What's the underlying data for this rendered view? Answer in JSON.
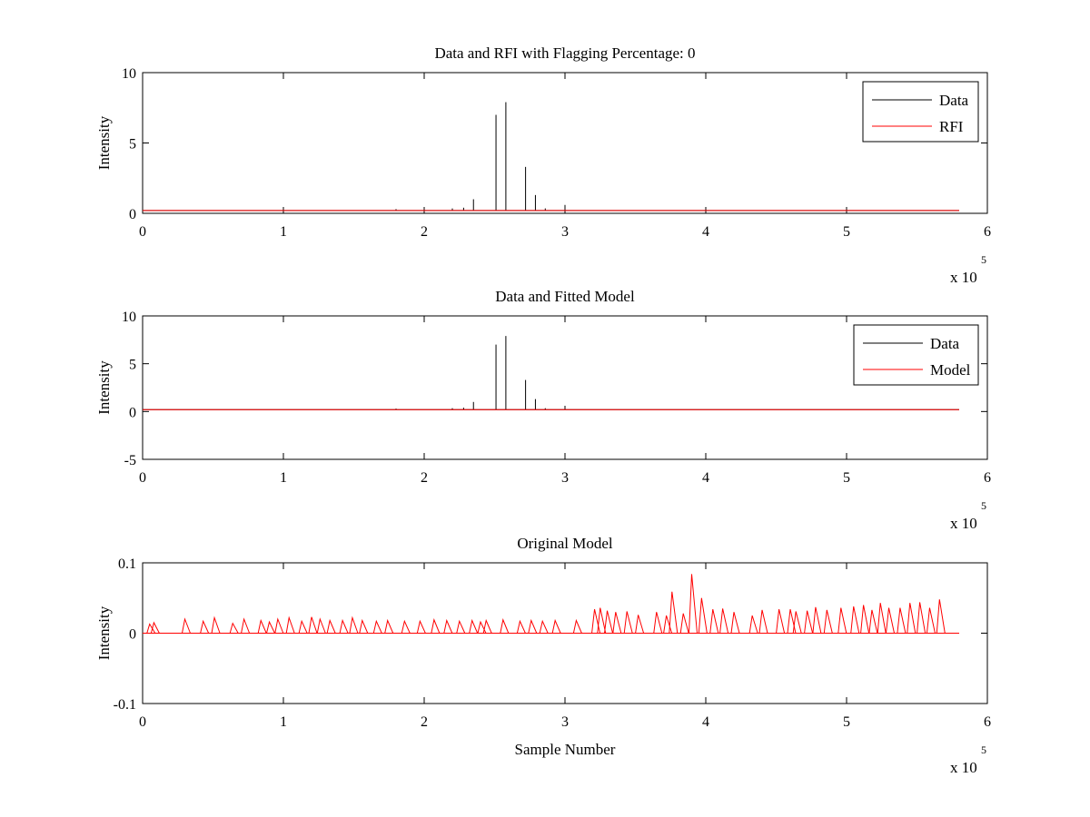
{
  "chart_data": [
    {
      "type": "line",
      "title": "Data and RFI with Flagging Percentage: 0",
      "xlabel": "",
      "ylabel": "Intensity",
      "xlim": [
        0,
        600000
      ],
      "ylim": [
        0,
        10
      ],
      "xticks": [
        0,
        1,
        2,
        3,
        4,
        5,
        6
      ],
      "yticks": [
        0,
        5,
        10
      ],
      "x_multiplier": "x 10",
      "x_multiplier_power": "5",
      "legend": {
        "position": "top-right",
        "entries": [
          {
            "name": "Data",
            "color": "#000000"
          },
          {
            "name": "RFI",
            "color": "#ff0000"
          }
        ]
      },
      "series": [
        {
          "name": "Data",
          "color": "#000000",
          "baseline": 0.2,
          "spikes_x": [
            2350,
            2510,
            2580,
            2720,
            2790,
            2860,
            3000,
            1800,
            2200,
            2280
          ],
          "spikes_y": [
            1.0,
            7.0,
            7.9,
            3.3,
            1.3,
            0.35,
            0.6,
            0.3,
            0.35,
            0.4
          ]
        },
        {
          "name": "RFI",
          "color": "#ff0000",
          "baseline": 0.2,
          "spikes_x": [],
          "spikes_y": []
        }
      ]
    },
    {
      "type": "line",
      "title": "Data and Fitted Model",
      "xlabel": "",
      "ylabel": "Intensity",
      "xlim": [
        0,
        600000
      ],
      "ylim": [
        -5,
        10
      ],
      "xticks": [
        0,
        1,
        2,
        3,
        4,
        5,
        6
      ],
      "yticks": [
        -5,
        0,
        5,
        10
      ],
      "x_multiplier": "x 10",
      "x_multiplier_power": "5",
      "legend": {
        "position": "top-right",
        "entries": [
          {
            "name": "Data",
            "color": "#000000"
          },
          {
            "name": "Model",
            "color": "#ff0000"
          }
        ]
      },
      "series": [
        {
          "name": "Data",
          "color": "#000000",
          "baseline": 0.2,
          "spikes_x": [
            2350,
            2510,
            2580,
            2720,
            2790,
            2860,
            3000,
            1800,
            2200,
            2280
          ],
          "spikes_y": [
            1.0,
            7.0,
            7.9,
            3.3,
            1.3,
            0.35,
            0.6,
            0.3,
            0.35,
            0.4
          ]
        },
        {
          "name": "Model",
          "color": "#ff0000",
          "baseline": 0.2,
          "spikes_x": [],
          "spikes_y": []
        }
      ]
    },
    {
      "type": "line",
      "title": "Original Model",
      "xlabel": "Sample Number",
      "ylabel": "Intensity",
      "xlim": [
        0,
        600000
      ],
      "ylim": [
        -0.1,
        0.1
      ],
      "xticks": [
        0,
        1,
        2,
        3,
        4,
        5,
        6
      ],
      "yticks": [
        -0.1,
        0,
        0.1
      ],
      "ytick_labels": [
        "-0.1",
        "0",
        "0.1"
      ],
      "x_multiplier": "x 10",
      "x_multiplier_power": "5",
      "series": [
        {
          "name": "",
          "color": "#ff0000",
          "baseline": 0.0,
          "peak_x": [
            50,
            80,
            300,
            430,
            510,
            640,
            720,
            840,
            900,
            960,
            1040,
            1130,
            1200,
            1260,
            1330,
            1420,
            1490,
            1560,
            1660,
            1740,
            1860,
            1970,
            2070,
            2160,
            2250,
            2340,
            2400,
            2440,
            2560,
            2680,
            2760,
            2840,
            2930,
            3080,
            3210,
            3250,
            3300,
            3360,
            3440,
            3520,
            3650,
            3720,
            3760,
            3840,
            3900,
            3970,
            4050,
            4120,
            4200,
            4330,
            4400,
            4520,
            4600,
            4640,
            4720,
            4780,
            4860,
            4960,
            5050,
            5120,
            5180,
            5240,
            5300,
            5380,
            5450,
            5520,
            5590,
            5660
          ],
          "peak_y": [
            0.013,
            0.015,
            0.02,
            0.017,
            0.022,
            0.014,
            0.02,
            0.018,
            0.016,
            0.02,
            0.022,
            0.017,
            0.023,
            0.02,
            0.018,
            0.018,
            0.022,
            0.018,
            0.017,
            0.018,
            0.017,
            0.017,
            0.019,
            0.018,
            0.017,
            0.018,
            0.016,
            0.018,
            0.019,
            0.017,
            0.018,
            0.017,
            0.018,
            0.018,
            0.034,
            0.036,
            0.032,
            0.03,
            0.031,
            0.026,
            0.03,
            0.025,
            0.059,
            0.028,
            0.084,
            0.05,
            0.034,
            0.035,
            0.03,
            0.025,
            0.033,
            0.034,
            0.034,
            0.031,
            0.032,
            0.037,
            0.033,
            0.036,
            0.038,
            0.04,
            0.033,
            0.043,
            0.036,
            0.036,
            0.043,
            0.044,
            0.036,
            0.048
          ]
        }
      ]
    }
  ]
}
